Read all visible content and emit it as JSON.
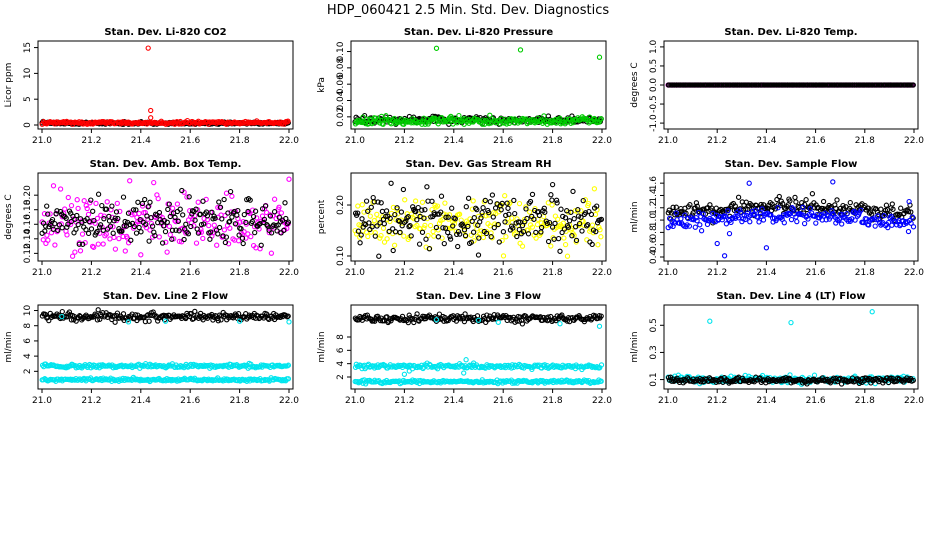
{
  "figure": {
    "title": "HDP_060421  2.5 Min. Std. Dev. Diagnostics"
  },
  "chart_data": [
    {
      "type": "scatter",
      "title": "Stan. Dev. Li-820 CO2",
      "ylabel": "Licor ppm",
      "xlim": [
        21.0,
        22.0
      ],
      "ylim": [
        0,
        15.5
      ],
      "xticks": [
        "21.0",
        "21.2",
        "21.4",
        "21.6",
        "21.8",
        "22.0"
      ],
      "yticks": [
        "0",
        "5",
        "10",
        "15"
      ],
      "series": [
        {
          "color": "#000000",
          "base": 0.35,
          "spread": 0.12,
          "outliers": []
        },
        {
          "color": "#ff0000",
          "base": 0.45,
          "spread": 0.15,
          "outliers": [
            [
              21.43,
              14.9
            ],
            [
              21.44,
              2.8
            ],
            [
              21.44,
              1.4
            ]
          ]
        }
      ]
    },
    {
      "type": "scatter",
      "title": "Stan. Dev. Li-820 Pressure",
      "ylabel": "kPa",
      "xlim": [
        21.0,
        22.0
      ],
      "ylim": [
        0.01,
        0.108
      ],
      "y_reversed_labels": false,
      "xticks": [
        "21.0",
        "21.2",
        "21.4",
        "21.6",
        "21.8",
        "22.0"
      ],
      "yticks": [
        "0.02",
        "0.04",
        "0.06",
        "0.08",
        "0.10"
      ],
      "series": [
        {
          "color": "#000000",
          "base": 0.016,
          "spread": 0.002,
          "outliers": []
        },
        {
          "color": "#00cc00",
          "base": 0.015,
          "spread": 0.0025,
          "outliers": [
            [
              21.33,
              0.104
            ],
            [
              21.67,
              0.102
            ],
            [
              21.99,
              0.093
            ]
          ]
        }
      ]
    },
    {
      "type": "scatter",
      "title": "Stan. Dev. Li-820 Temp.",
      "ylabel": "degrees C",
      "xlim": [
        21.0,
        22.0
      ],
      "ylim": [
        -1.05,
        1.05
      ],
      "xticks": [
        "21.0",
        "21.2",
        "21.4",
        "21.6",
        "21.8",
        "22.0"
      ],
      "yticks": [
        "-1.0",
        "-0.5",
        "0.0",
        "0.5",
        "1.0"
      ],
      "series": [
        {
          "color": "#ff00ff",
          "base": 0.0,
          "spread": 0.0,
          "outliers": []
        },
        {
          "color": "#000000",
          "base": 0.0,
          "spread": 0.0,
          "outliers": []
        }
      ]
    },
    {
      "type": "scatter",
      "title": "Stan. Dev. Amb. Box Temp.",
      "ylabel": "degrees C",
      "xlim": [
        21.0,
        22.0
      ],
      "ylim": [
        0.115,
        0.225
      ],
      "xticks": [
        "21.0",
        "21.2",
        "21.4",
        "21.6",
        "21.8",
        "22.0"
      ],
      "yticks": [
        "0.12",
        "0.14",
        "0.16",
        "0.18",
        "0.20"
      ],
      "series": [
        {
          "color": "#ff00ff",
          "base": 0.161,
          "spread": 0.018,
          "outliers": [
            [
              21.4,
              0.118
            ],
            [
              22.0,
              0.222
            ]
          ]
        },
        {
          "color": "#000000",
          "base": 0.165,
          "spread": 0.015,
          "outliers": []
        }
      ]
    },
    {
      "type": "scatter",
      "title": "Stan. Dev. Gas Stream RH",
      "ylabel": "percent",
      "xlim": [
        21.0,
        22.0
      ],
      "ylim": [
        0.098,
        0.255
      ],
      "xticks": [
        "21.0",
        "21.2",
        "21.4",
        "21.6",
        "21.8",
        "22.0"
      ],
      "yticks": [
        "0.10",
        "0.20"
      ],
      "series": [
        {
          "color": "#ffff00",
          "base": 0.165,
          "spread": 0.025,
          "outliers": []
        },
        {
          "color": "#000000",
          "base": 0.17,
          "spread": 0.025,
          "outliers": [
            [
              21.5,
              0.102
            ],
            [
              21.8,
              0.24
            ]
          ]
        }
      ]
    },
    {
      "type": "scatter",
      "title": "Stan. Dev. Sample Flow",
      "ylabel": "ml/min",
      "xlim": [
        21.0,
        22.0
      ],
      "ylim": [
        0.4,
        1.7
      ],
      "xticks": [
        "21.0",
        "21.2",
        "21.4",
        "21.6",
        "21.8",
        "22.0"
      ],
      "yticks": [
        "0.4",
        "0.6",
        "0.8",
        "1.0",
        "1.2",
        "1.4",
        "1.6"
      ],
      "series": [
        {
          "color": "#000000",
          "base": 1.1,
          "spread": 0.06,
          "outliers": []
        },
        {
          "color": "#0000ff",
          "base": 0.95,
          "spread": 0.06,
          "outliers": [
            [
              21.23,
              0.42
            ],
            [
              21.2,
              0.62
            ],
            [
              21.33,
              1.6
            ],
            [
              21.67,
              1.62
            ],
            [
              21.25,
              0.78
            ],
            [
              21.4,
              0.55
            ],
            [
              21.98,
              1.3
            ]
          ]
        }
      ]
    },
    {
      "type": "scatter",
      "title": "Stan. Dev. Line 2 Flow",
      "ylabel": "ml/min",
      "xlim": [
        21.0,
        22.0
      ],
      "ylim": [
        0.2,
        10.2
      ],
      "xticks": [
        "21.0",
        "21.2",
        "21.4",
        "21.6",
        "21.8",
        "22.0"
      ],
      "yticks": [
        "2",
        "4",
        "6",
        "8",
        "10"
      ],
      "series": [
        {
          "color": "#000000",
          "base": 9.2,
          "spread": 0.25,
          "outliers": []
        },
        {
          "color": "#00e5ee",
          "base": 2.7,
          "spread": 0.12,
          "outliers": []
        },
        {
          "color": "#00e5ee",
          "base": 0.9,
          "spread": 0.1,
          "outliers": [
            [
              21.35,
              8.5
            ],
            [
              21.5,
              8.6
            ],
            [
              21.8,
              8.6
            ],
            [
              22.0,
              8.5
            ],
            [
              21.08,
              9.2
            ]
          ]
        }
      ]
    },
    {
      "type": "scatter",
      "title": "Stan. Dev. Line 3 Flow",
      "ylabel": "ml/min",
      "xlim": [
        21.0,
        22.0
      ],
      "ylim": [
        0.8,
        12.2
      ],
      "xticks": [
        "21.0",
        "21.2",
        "21.4",
        "21.6",
        "21.8",
        "22.0"
      ],
      "yticks": [
        "2",
        "4",
        "6",
        "8"
      ],
      "series": [
        {
          "color": "#000000",
          "base": 10.8,
          "spread": 0.3,
          "outliers": []
        },
        {
          "color": "#00e5ee",
          "base": 3.6,
          "spread": 0.15,
          "outliers": [
            [
              21.45,
              4.6
            ],
            [
              21.48,
              4.1
            ],
            [
              21.44,
              2.6
            ],
            [
              21.2,
              2.4
            ],
            [
              21.22,
              2.9
            ]
          ]
        },
        {
          "color": "#00e5ee",
          "base": 1.3,
          "spread": 0.12,
          "outliers": [
            [
              21.33,
              10.6
            ],
            [
              21.5,
              10.5
            ],
            [
              21.83,
              10.0
            ],
            [
              21.99,
              9.6
            ],
            [
              21.58,
              10.2
            ]
          ]
        }
      ]
    },
    {
      "type": "scatter",
      "title": "Stan. Dev. Line 4 (LT) Flow",
      "ylabel": "ml/min",
      "xlim": [
        21.0,
        22.0
      ],
      "ylim": [
        0.06,
        0.62
      ],
      "xticks": [
        "21.0",
        "21.2",
        "21.4",
        "21.6",
        "21.8",
        "22.0"
      ],
      "yticks": [
        "0.1",
        "0.3",
        "0.5"
      ],
      "series": [
        {
          "color": "#00e5ee",
          "base": 0.1,
          "spread": 0.012,
          "outliers": [
            [
              21.17,
              0.53
            ],
            [
              21.5,
              0.52
            ],
            [
              21.83,
              0.6
            ]
          ]
        },
        {
          "color": "#000000",
          "base": 0.095,
          "spread": 0.01,
          "outliers": []
        }
      ]
    }
  ]
}
